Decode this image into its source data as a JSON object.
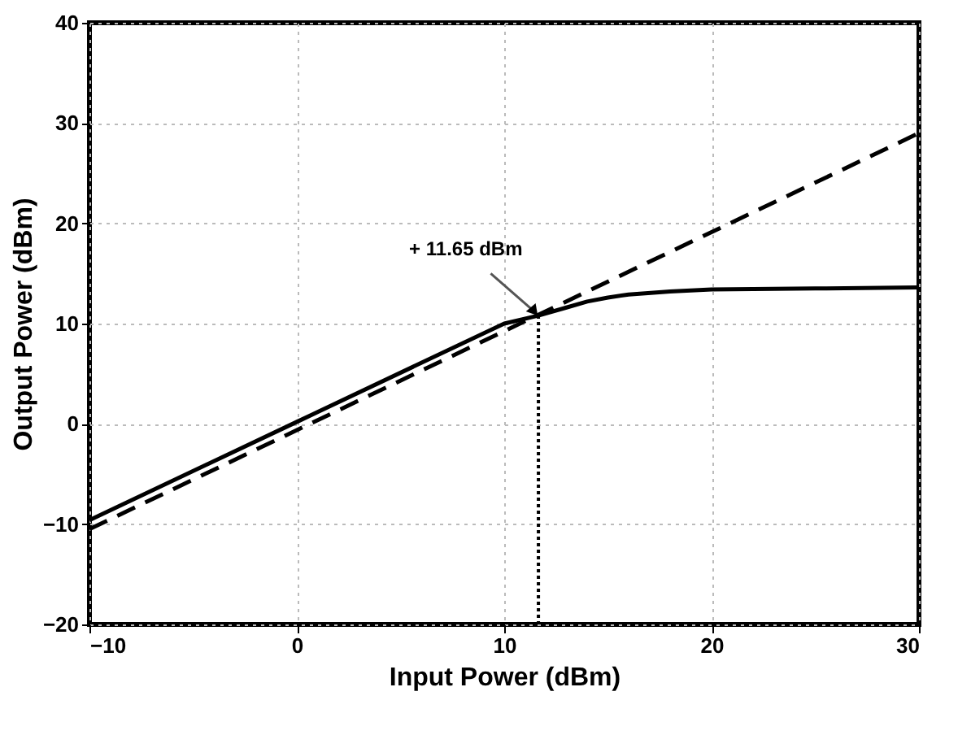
{
  "chart_data": {
    "type": "line",
    "xlabel": "Input Power (dBm)",
    "ylabel": "Output Power (dBm)",
    "xlim": [
      -10,
      30
    ],
    "ylim": [
      -20,
      40
    ],
    "xticks": [
      -10,
      0,
      10,
      20,
      30
    ],
    "yticks": [
      -20,
      -10,
      0,
      10,
      20,
      30,
      40
    ],
    "grid": true,
    "series": [
      {
        "color": "#000000",
        "line_style": "solid",
        "x": [
          -10,
          0,
          10,
          11.65,
          13,
          14,
          15,
          16,
          18,
          20,
          25,
          30
        ],
        "values": [
          -9.6,
          0.2,
          10,
          10.8,
          11.6,
          12.2,
          12.6,
          12.9,
          13.2,
          13.4,
          13.5,
          13.6
        ]
      },
      {
        "color": "#000000",
        "line_style": "dashed",
        "x": [
          -10,
          30
        ],
        "values": [
          -10.5,
          29
        ]
      }
    ],
    "ref_lines": [
      {
        "axis": "x",
        "value": 11.65,
        "line_style": "dotted",
        "color": "#000000"
      }
    ],
    "annotations": [
      {
        "text": "+ 11.65 dBm",
        "x": 11.65,
        "y": 10.8
      }
    ]
  }
}
